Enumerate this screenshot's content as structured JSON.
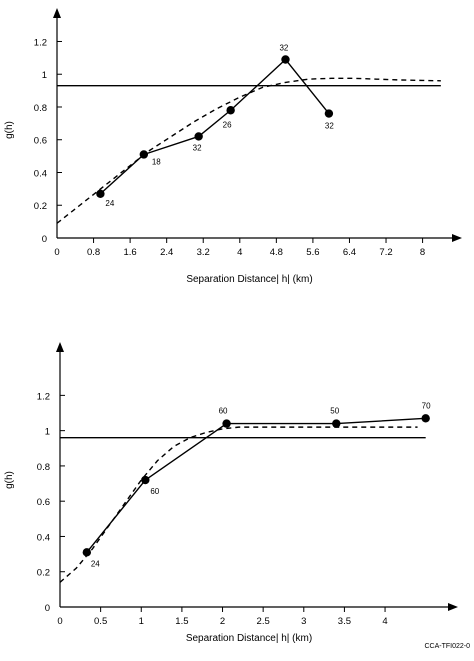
{
  "footer": {
    "credit": "CCA-TFI022-0"
  },
  "chart_data": [
    {
      "type": "line",
      "xlabel": "Separation Distance| h| (km)",
      "ylabel": "g(h)",
      "xlim": [
        0,
        8.6
      ],
      "ylim": [
        0,
        1.38
      ],
      "xticks": [
        0,
        0.8,
        1.6,
        2.4,
        3.2,
        4,
        4.8,
        5.6,
        6.4,
        7.2,
        8
      ],
      "xtick_labels": [
        "0",
        "0.8",
        "1.6",
        "2.4",
        "3.2",
        "4",
        "4.8",
        "5.6",
        "6.4",
        "7.2",
        "8"
      ],
      "yticks": [
        0,
        0.2,
        0.4,
        0.6,
        0.8,
        1,
        1.2
      ],
      "ytick_labels": [
        "0",
        "0.2",
        "0.4",
        "0.6",
        "0.8",
        "1",
        "1.2"
      ],
      "grid": false,
      "series": [
        {
          "style": "solid-markers",
          "x": [
            0.95,
            1.9,
            3.1,
            3.8,
            5.0,
            5.95
          ],
          "y": [
            0.27,
            0.51,
            0.62,
            0.78,
            1.09,
            0.76
          ],
          "point_labels": [
            "24",
            "18",
            "32",
            "26",
            "32",
            "32"
          ]
        },
        {
          "style": "dashed",
          "x": [
            0,
            0.5,
            1.0,
            1.5,
            2.0,
            2.5,
            3.0,
            3.5,
            4.0,
            4.5,
            5.0,
            5.5,
            6.0,
            6.5,
            7.0,
            7.5,
            8.0,
            8.4
          ],
          "y": [
            0.09,
            0.2,
            0.31,
            0.42,
            0.53,
            0.62,
            0.71,
            0.79,
            0.86,
            0.92,
            0.95,
            0.97,
            0.975,
            0.975,
            0.97,
            0.965,
            0.962,
            0.96
          ]
        },
        {
          "style": "solid",
          "x": [
            0,
            8.4
          ],
          "y": [
            0.93,
            0.93
          ]
        }
      ]
    },
    {
      "type": "line",
      "xlabel": "Separation Distance| h| (km)",
      "ylabel": "g(h)",
      "xlim": [
        0,
        4.75
      ],
      "ylim": [
        0,
        1.48
      ],
      "xticks": [
        0,
        0.5,
        1,
        1.5,
        2,
        2.5,
        3,
        3.5,
        4
      ],
      "xtick_labels": [
        "0",
        "0.5",
        "1",
        "1.5",
        "2",
        "2.5",
        "3",
        "3.5",
        "4"
      ],
      "yticks": [
        0,
        0.2,
        0.4,
        0.6,
        0.8,
        1,
        1.2
      ],
      "ytick_labels": [
        "0",
        "0.2",
        "0.4",
        "0.6",
        "0.8",
        "1",
        "1.2"
      ],
      "grid": false,
      "series": [
        {
          "style": "solid-markers",
          "x": [
            0.33,
            1.05,
            2.05,
            3.4,
            4.5
          ],
          "y": [
            0.31,
            0.72,
            1.04,
            1.04,
            1.07
          ],
          "point_labels": [
            "24",
            "60",
            "60",
            "50",
            "70"
          ]
        },
        {
          "style": "dashed",
          "x": [
            0,
            0.2,
            0.4,
            0.6,
            0.8,
            1.0,
            1.2,
            1.4,
            1.6,
            1.8,
            2.0,
            2.2,
            2.5,
            3.0,
            3.5,
            4.0,
            4.4
          ],
          "y": [
            0.14,
            0.22,
            0.33,
            0.46,
            0.59,
            0.72,
            0.83,
            0.91,
            0.96,
            0.99,
            1.01,
            1.02,
            1.02,
            1.02,
            1.02,
            1.02,
            1.02
          ]
        },
        {
          "style": "solid",
          "x": [
            0,
            4.5
          ],
          "y": [
            0.96,
            0.96
          ]
        }
      ]
    }
  ]
}
